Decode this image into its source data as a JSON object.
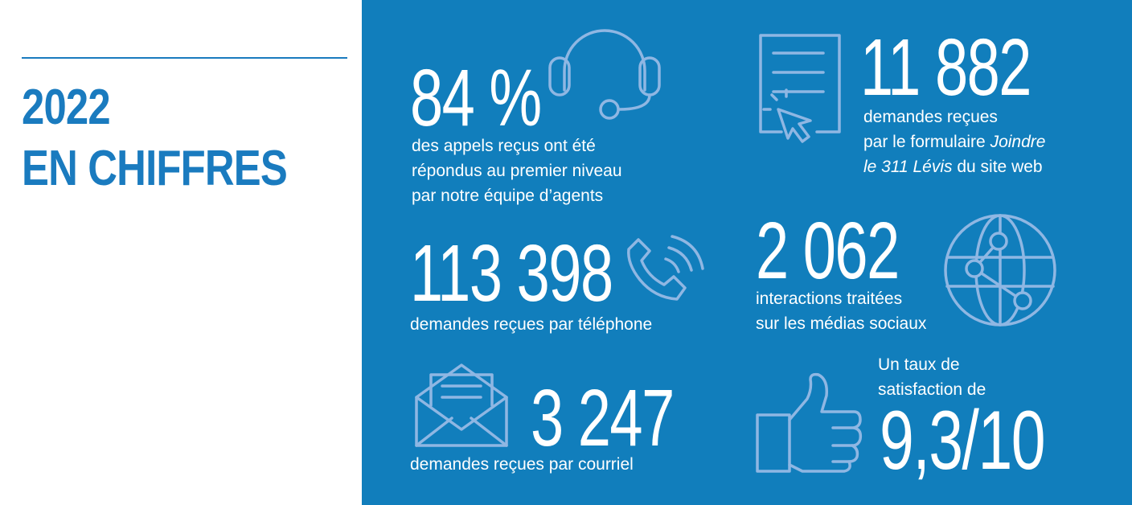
{
  "heading": {
    "line1": "2022",
    "line2": "EN CHIFFRES"
  },
  "colors": {
    "brand_blue": "#1a7bbf",
    "panel_blue": "#117ebc",
    "icon_stroke": "#8fb7e3",
    "text_white": "#ffffff"
  },
  "stats": {
    "appels": {
      "value": "84 %",
      "line1": "des appels reçus ont été",
      "line2": "répondus au premier niveau",
      "line3": "par notre équipe d’agents",
      "icon": "headset-icon"
    },
    "formulaire": {
      "value": "11 882",
      "line1": "demandes reçues",
      "line2_pre": "par le formulaire ",
      "line2_em": "Joindre",
      "line3_em": "le 311 Lévis",
      "line3_post": " du site web",
      "icon": "web-form-icon"
    },
    "telephone": {
      "value": "113 398",
      "line1": "demandes reçues par téléphone",
      "icon": "phone-icon"
    },
    "medias": {
      "value": "2 062",
      "line1": "interactions traitées",
      "line2": "sur les médias sociaux",
      "icon": "globe-network-icon"
    },
    "courriel": {
      "value": "3 247",
      "line1": "demandes reçues par courriel",
      "icon": "envelope-icon"
    },
    "satisfaction": {
      "line1": "Un taux de",
      "line2": "satisfaction de",
      "value": "9,3/10",
      "icon": "thumbs-up-icon"
    }
  }
}
